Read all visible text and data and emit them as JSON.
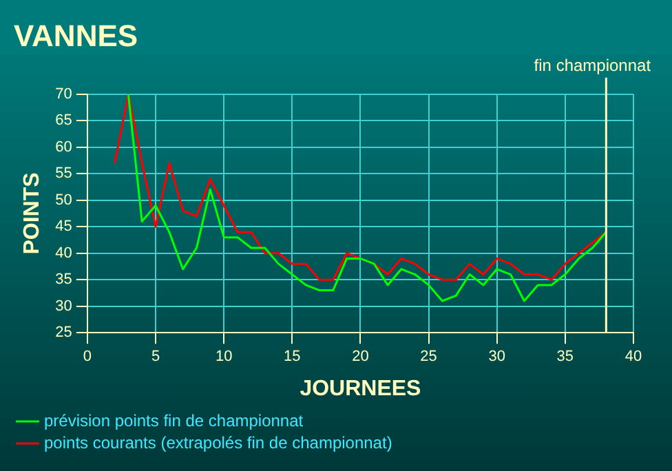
{
  "chart_data": {
    "type": "line",
    "title": "VANNES",
    "xlabel": "JOURNEES",
    "ylabel": "POINTS",
    "x": [
      2,
      3,
      4,
      5,
      6,
      7,
      8,
      9,
      10,
      11,
      12,
      13,
      14,
      15,
      16,
      17,
      18,
      19,
      20,
      21,
      22,
      23,
      24,
      25,
      26,
      27,
      28,
      29,
      30,
      31,
      32,
      33,
      34,
      35,
      36,
      37,
      38
    ],
    "series": [
      {
        "name": "prévision points fin de championnat",
        "color": "#00ff00",
        "values": [
          null,
          70,
          46,
          49,
          44,
          37,
          41,
          52,
          43,
          43,
          41,
          41,
          38,
          36,
          34,
          33,
          33,
          39,
          39,
          38,
          34,
          37,
          36,
          34,
          31,
          32,
          36,
          34,
          37,
          36,
          31,
          34,
          34,
          36,
          39,
          41,
          44
        ]
      },
      {
        "name": "points courants (extrapolés fin de championnat)",
        "color": "#ff0000",
        "values": [
          57,
          70,
          57,
          45,
          57,
          48,
          47,
          54,
          49,
          44,
          44,
          40,
          40,
          38,
          38,
          35,
          35,
          40,
          39,
          38,
          36,
          39,
          38,
          36,
          35,
          35,
          38,
          36,
          39,
          38,
          36,
          36,
          35,
          38,
          40,
          42,
          44
        ]
      }
    ],
    "xlim": [
      0,
      40
    ],
    "xticks": [
      0,
      5,
      10,
      15,
      20,
      25,
      30,
      35,
      40
    ],
    "ylim": [
      25,
      70
    ],
    "yticks": [
      25,
      30,
      35,
      40,
      45,
      50,
      55,
      60,
      65,
      70
    ],
    "grid": true,
    "legend": "bottom left",
    "marker": "none",
    "line_style": "solid",
    "ref_lines": [
      {
        "axis": "x",
        "value": 38,
        "label": "fin championnat",
        "color": "#ffffc0"
      }
    ]
  }
}
